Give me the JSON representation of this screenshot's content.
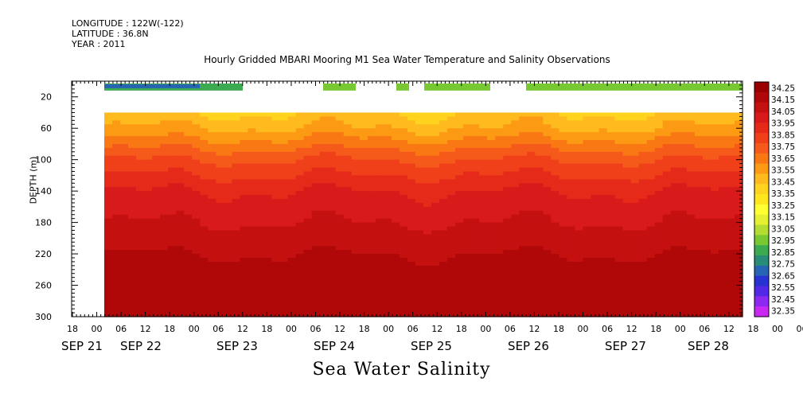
{
  "header": {
    "longitude": "LONGITUDE : 122W(-122)",
    "latitude": "LATITUDE : 36.8N",
    "year": "YEAR : 2011"
  },
  "chart_data": {
    "type": "heatmap",
    "title": "Hourly Gridded MBARI Mooring M1 Sea Water Temperature and Salinity Observations",
    "bottom_title": "Sea Water Salinity",
    "ylabel": "DEPTH (m)",
    "ylim": [
      0,
      300
    ],
    "y_ticks": [
      20,
      60,
      100,
      140,
      180,
      220,
      260,
      300
    ],
    "y_inverted": true,
    "x_hour_ticks": [
      "18",
      "00",
      "06",
      "12",
      "18",
      "00",
      "06",
      "12",
      "18",
      "00",
      "06",
      "12",
      "18",
      "00",
      "06",
      "12",
      "18",
      "00",
      "06",
      "12",
      "18",
      "00",
      "06",
      "12",
      "18",
      "00",
      "06",
      "12",
      "18",
      "00",
      "06",
      "12"
    ],
    "x_date_labels": [
      "SEP 21",
      "SEP 22",
      "SEP 23",
      "SEP 24",
      "SEP 25",
      "SEP 26",
      "SEP 27",
      "SEP 28"
    ],
    "colorbar_levels": [
      "34.25",
      "34.15",
      "34.05",
      "33.95",
      "33.85",
      "33.75",
      "33.65",
      "33.55",
      "33.45",
      "33.35",
      "33.25",
      "33.15",
      "33.05",
      "32.95",
      "32.85",
      "32.75",
      "32.65",
      "32.55",
      "32.45",
      "32.35"
    ],
    "colorbar_colors": [
      "#9a0000",
      "#b00808",
      "#c51010",
      "#d81a1a",
      "#e62a1a",
      "#f0401a",
      "#f55a1a",
      "#fa7814",
      "#fd9a14",
      "#ffbb1e",
      "#ffd31e",
      "#ffe61e",
      "#ffff32",
      "#e6f032",
      "#b4dc32",
      "#78c832",
      "#3caa50",
      "#288c78",
      "#2864b4",
      "#2832d2",
      "#5028e6",
      "#8c28f0",
      "#c828f0"
    ],
    "series_note": "",
    "depth_profile": [
      {
        "depth": 20,
        "salinity": 33.15
      },
      {
        "depth": 40,
        "salinity": 33.35
      },
      {
        "depth": 60,
        "salinity": 33.45
      },
      {
        "depth": 80,
        "salinity": 33.6
      },
      {
        "depth": 100,
        "salinity": 33.75
      },
      {
        "depth": 120,
        "salinity": 33.85
      },
      {
        "depth": 140,
        "salinity": 33.95
      },
      {
        "depth": 160,
        "salinity": 34.0
      },
      {
        "depth": 180,
        "salinity": 34.05
      },
      {
        "depth": 200,
        "salinity": 34.1
      },
      {
        "depth": 220,
        "salinity": 34.15
      },
      {
        "depth": 240,
        "salinity": 34.18
      },
      {
        "depth": 260,
        "salinity": 34.22
      },
      {
        "depth": 300,
        "salinity": 34.25
      }
    ]
  }
}
